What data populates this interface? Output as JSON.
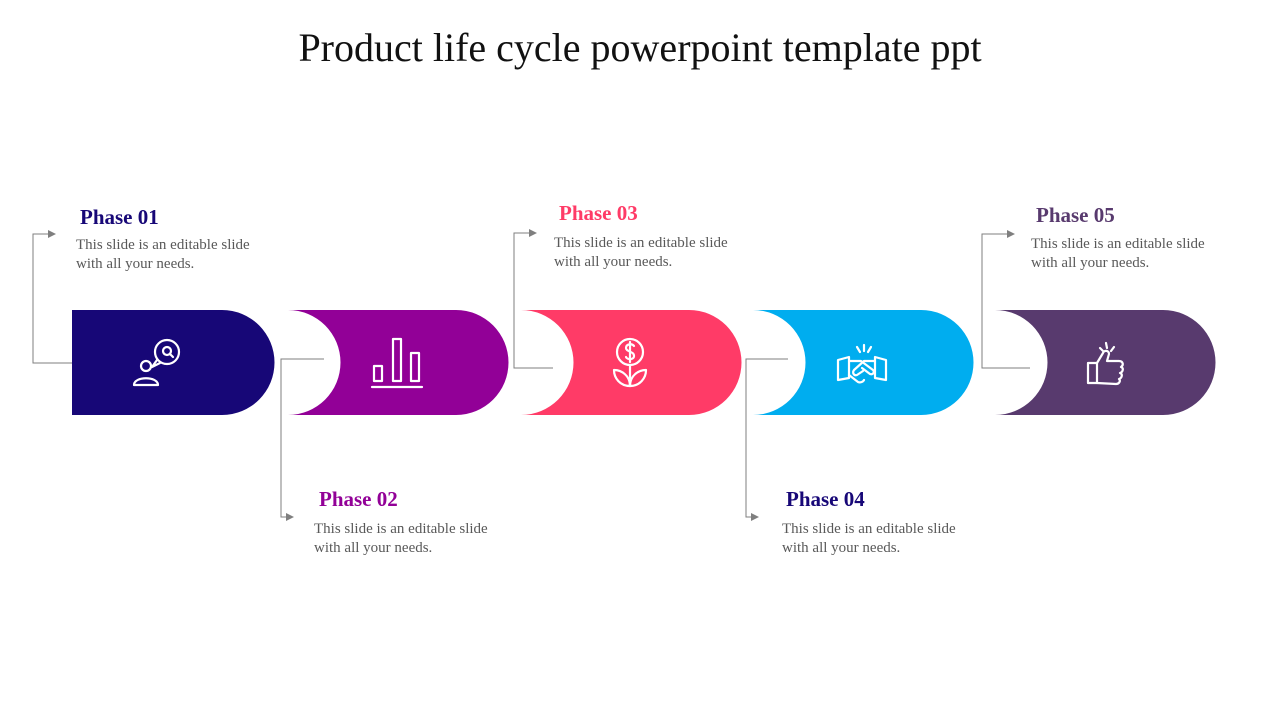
{
  "title": "Product life cycle powerpoint template ppt",
  "phases": [
    {
      "label": "Phase 01",
      "description": "This slide is an editable slide with all your needs.",
      "color": "#170777",
      "icon": "search-person-icon"
    },
    {
      "label": "Phase 02",
      "description": "This slide is an editable slide with all your needs.",
      "color": "#920097",
      "icon": "bar-chart-icon"
    },
    {
      "label": "Phase 03",
      "description": "This slide is an editable slide with all your needs.",
      "color": "#FF3B67",
      "icon": "money-plant-icon"
    },
    {
      "label": "Phase 04",
      "description": "This slide is an editable slide with all your needs.",
      "color": "#00ADEF",
      "icon": "handshake-icon"
    },
    {
      "label": "Phase 05",
      "description": "This slide is an editable slide with all your needs.",
      "color": "#583A6E",
      "icon": "thumbs-up-icon"
    }
  ]
}
